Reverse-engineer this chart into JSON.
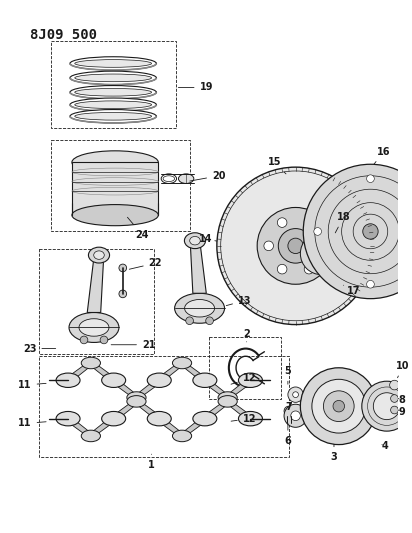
{
  "title": "8J09 500",
  "bg_color": "#ffffff",
  "line_color": "#1a1a1a",
  "title_fontsize": 10,
  "label_fontsize": 7
}
